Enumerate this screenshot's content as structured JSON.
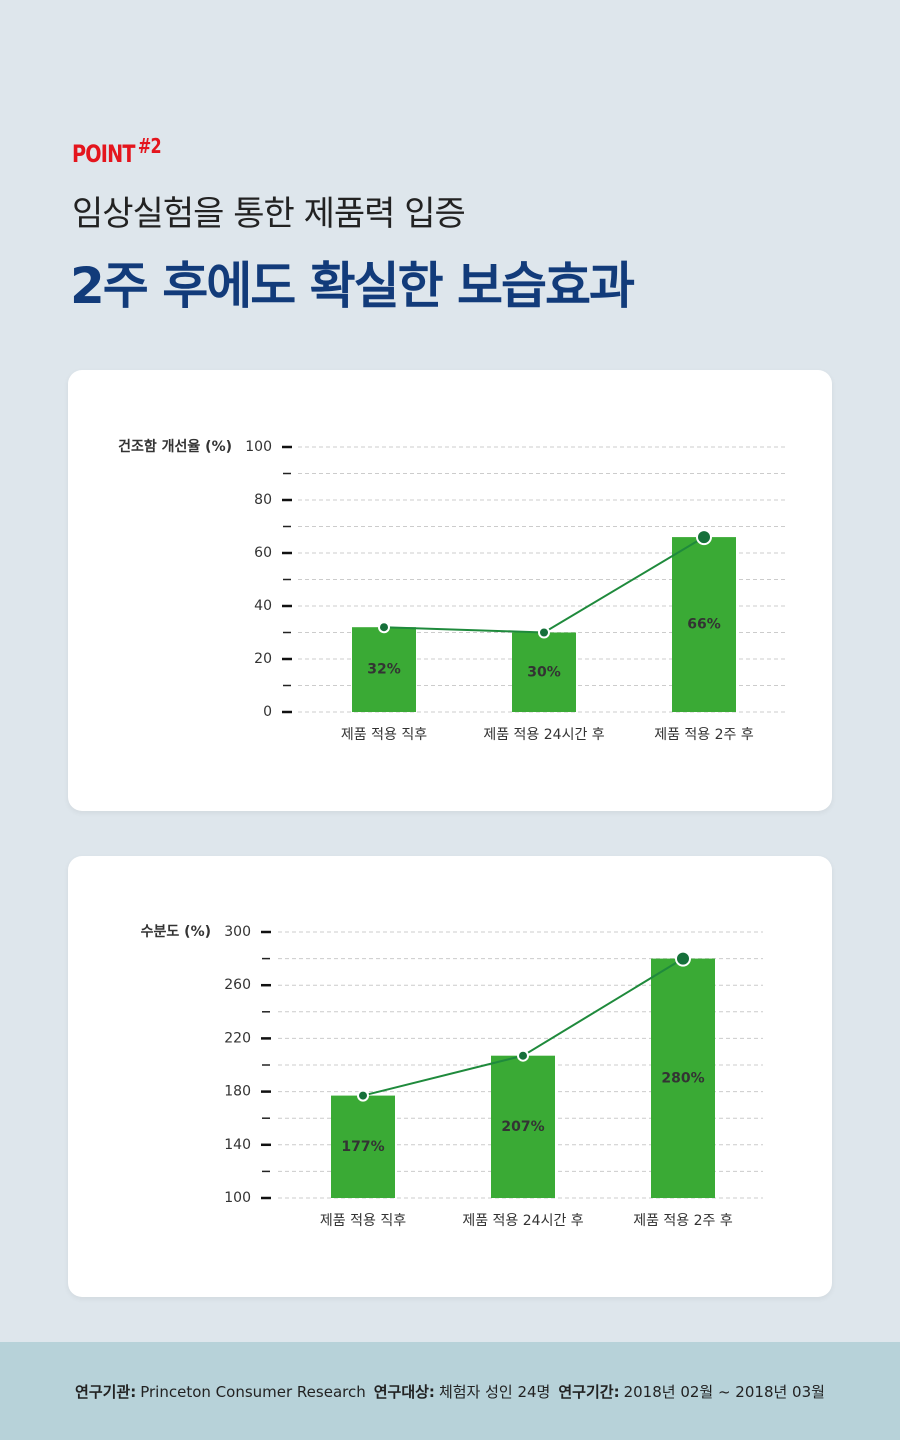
{
  "header": {
    "point": "POINT",
    "point_number": "#2",
    "subtitle": "임상실험을 통한 제품력 입증",
    "title": "2주 후에도 확실한 보습효과"
  },
  "chart_data": [
    {
      "type": "bar",
      "y_label": "건조함 개선율 (%)",
      "categories": [
        "제품 적용 직후",
        "제품 적용 24시간 후",
        "제품 적용 2주 후"
      ],
      "values": [
        32,
        30,
        66
      ],
      "value_labels": [
        "32%",
        "30%",
        "66%"
      ],
      "value_label_colors": [
        "#ffffff",
        "#ffffff",
        "#f3ec19"
      ],
      "color": "#3aaa35",
      "line_color": "#1f8a3c",
      "marker_color": "#16703a",
      "ylim": [
        0,
        100
      ],
      "yticks": [
        0,
        20,
        40,
        60,
        80,
        100
      ],
      "yminor": [
        10,
        30,
        50,
        70,
        90
      ],
      "grid": true
    },
    {
      "type": "bar",
      "y_label": "수분도 (%)",
      "categories": [
        "제품 적용 직후",
        "제품 적용 24시간 후",
        "제품 적용 2주 후"
      ],
      "values": [
        177,
        207,
        280
      ],
      "value_labels": [
        "177%",
        "207%",
        "280%"
      ],
      "value_label_colors": [
        "#ffffff",
        "#ffffff",
        "#f3ec19"
      ],
      "color": "#3aaa35",
      "line_color": "#1f8a3c",
      "marker_color": "#16703a",
      "ylim": [
        100,
        300
      ],
      "yticks": [
        100,
        140,
        180,
        220,
        260,
        300
      ],
      "yminor": [
        120,
        160,
        200,
        240,
        280
      ],
      "grid": true
    }
  ],
  "footer": {
    "items": [
      {
        "label": "연구기관:",
        "value": "Princeton Consumer Research"
      },
      {
        "label": "연구대상:",
        "value": "체험자 성인 24명"
      },
      {
        "label": "연구기간:",
        "value": "2018년 02월 ~ 2018년 03월"
      }
    ]
  }
}
